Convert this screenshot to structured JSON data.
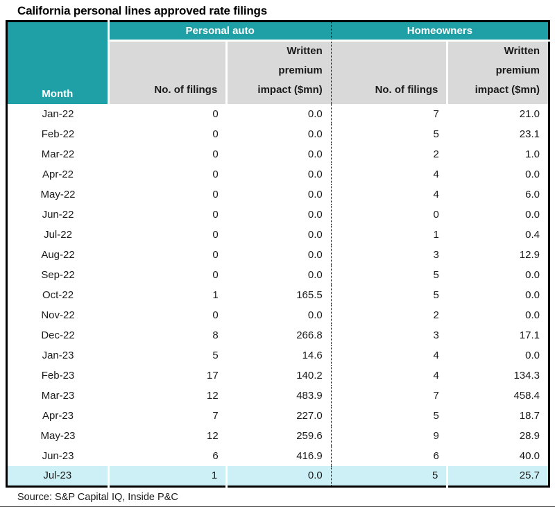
{
  "title": "California personal lines approved rate filings",
  "source": "Source: S&P Capital IQ, Inside P&C",
  "colors": {
    "teal": "#1ea0a6",
    "header_gray": "#d9d9d9",
    "highlight": "#cdf0f6",
    "text": "#1a1a1a"
  },
  "table": {
    "month_header": "Month",
    "groups": [
      {
        "label": "Personal auto"
      },
      {
        "label": "Homeowners"
      }
    ],
    "subheaders": {
      "filings": "No. of filings",
      "impact_lines": [
        "Written",
        "premium",
        "impact ($mn)"
      ]
    },
    "rows": [
      {
        "month": "Jan-22",
        "pa_filings": "0",
        "pa_impact": "0.0",
        "ho_filings": "7",
        "ho_impact": "21.0",
        "highlight": false
      },
      {
        "month": "Feb-22",
        "pa_filings": "0",
        "pa_impact": "0.0",
        "ho_filings": "5",
        "ho_impact": "23.1",
        "highlight": false
      },
      {
        "month": "Mar-22",
        "pa_filings": "0",
        "pa_impact": "0.0",
        "ho_filings": "2",
        "ho_impact": "1.0",
        "highlight": false
      },
      {
        "month": "Apr-22",
        "pa_filings": "0",
        "pa_impact": "0.0",
        "ho_filings": "4",
        "ho_impact": "0.0",
        "highlight": false
      },
      {
        "month": "May-22",
        "pa_filings": "0",
        "pa_impact": "0.0",
        "ho_filings": "4",
        "ho_impact": "6.0",
        "highlight": false
      },
      {
        "month": "Jun-22",
        "pa_filings": "0",
        "pa_impact": "0.0",
        "ho_filings": "0",
        "ho_impact": "0.0",
        "highlight": false
      },
      {
        "month": "Jul-22",
        "pa_filings": "0",
        "pa_impact": "0.0",
        "ho_filings": "1",
        "ho_impact": "0.4",
        "highlight": false
      },
      {
        "month": "Aug-22",
        "pa_filings": "0",
        "pa_impact": "0.0",
        "ho_filings": "3",
        "ho_impact": "12.9",
        "highlight": false
      },
      {
        "month": "Sep-22",
        "pa_filings": "0",
        "pa_impact": "0.0",
        "ho_filings": "5",
        "ho_impact": "0.0",
        "highlight": false
      },
      {
        "month": "Oct-22",
        "pa_filings": "1",
        "pa_impact": "165.5",
        "ho_filings": "5",
        "ho_impact": "0.0",
        "highlight": false
      },
      {
        "month": "Nov-22",
        "pa_filings": "0",
        "pa_impact": "0.0",
        "ho_filings": "2",
        "ho_impact": "0.0",
        "highlight": false
      },
      {
        "month": "Dec-22",
        "pa_filings": "8",
        "pa_impact": "266.8",
        "ho_filings": "3",
        "ho_impact": "17.1",
        "highlight": false
      },
      {
        "month": "Jan-23",
        "pa_filings": "5",
        "pa_impact": "14.6",
        "ho_filings": "4",
        "ho_impact": "0.0",
        "highlight": false
      },
      {
        "month": "Feb-23",
        "pa_filings": "17",
        "pa_impact": "140.2",
        "ho_filings": "4",
        "ho_impact": "134.3",
        "highlight": false
      },
      {
        "month": "Mar-23",
        "pa_filings": "12",
        "pa_impact": "483.9",
        "ho_filings": "7",
        "ho_impact": "458.4",
        "highlight": false
      },
      {
        "month": "Apr-23",
        "pa_filings": "7",
        "pa_impact": "227.0",
        "ho_filings": "5",
        "ho_impact": "18.7",
        "highlight": false
      },
      {
        "month": "May-23",
        "pa_filings": "12",
        "pa_impact": "259.6",
        "ho_filings": "9",
        "ho_impact": "28.9",
        "highlight": false
      },
      {
        "month": "Jun-23",
        "pa_filings": "6",
        "pa_impact": "416.9",
        "ho_filings": "6",
        "ho_impact": "40.0",
        "highlight": false
      },
      {
        "month": "Jul-23",
        "pa_filings": "1",
        "pa_impact": "0.0",
        "ho_filings": "5",
        "ho_impact": "25.7",
        "highlight": true
      }
    ]
  },
  "chart_data": {
    "type": "table",
    "title": "California personal lines approved rate filings",
    "columns": [
      "Month",
      "Personal auto - No. of filings",
      "Personal auto - Written premium impact ($mn)",
      "Homeowners - No. of filings",
      "Homeowners - Written premium impact ($mn)"
    ],
    "rows": [
      [
        "Jan-22",
        0,
        0.0,
        7,
        21.0
      ],
      [
        "Feb-22",
        0,
        0.0,
        5,
        23.1
      ],
      [
        "Mar-22",
        0,
        0.0,
        2,
        1.0
      ],
      [
        "Apr-22",
        0,
        0.0,
        4,
        0.0
      ],
      [
        "May-22",
        0,
        0.0,
        4,
        6.0
      ],
      [
        "Jun-22",
        0,
        0.0,
        0,
        0.0
      ],
      [
        "Jul-22",
        0,
        0.0,
        1,
        0.4
      ],
      [
        "Aug-22",
        0,
        0.0,
        3,
        12.9
      ],
      [
        "Sep-22",
        0,
        0.0,
        5,
        0.0
      ],
      [
        "Oct-22",
        1,
        165.5,
        5,
        0.0
      ],
      [
        "Nov-22",
        0,
        0.0,
        2,
        0.0
      ],
      [
        "Dec-22",
        8,
        266.8,
        3,
        17.1
      ],
      [
        "Jan-23",
        5,
        14.6,
        4,
        0.0
      ],
      [
        "Feb-23",
        17,
        140.2,
        4,
        134.3
      ],
      [
        "Mar-23",
        12,
        483.9,
        7,
        458.4
      ],
      [
        "Apr-23",
        7,
        227.0,
        5,
        18.7
      ],
      [
        "May-23",
        12,
        259.6,
        9,
        28.9
      ],
      [
        "Jun-23",
        6,
        416.9,
        6,
        40.0
      ],
      [
        "Jul-23",
        1,
        0.0,
        5,
        25.7
      ]
    ],
    "highlighted_row": "Jul-23",
    "source": "Source: S&P Capital IQ, Inside P&C"
  }
}
